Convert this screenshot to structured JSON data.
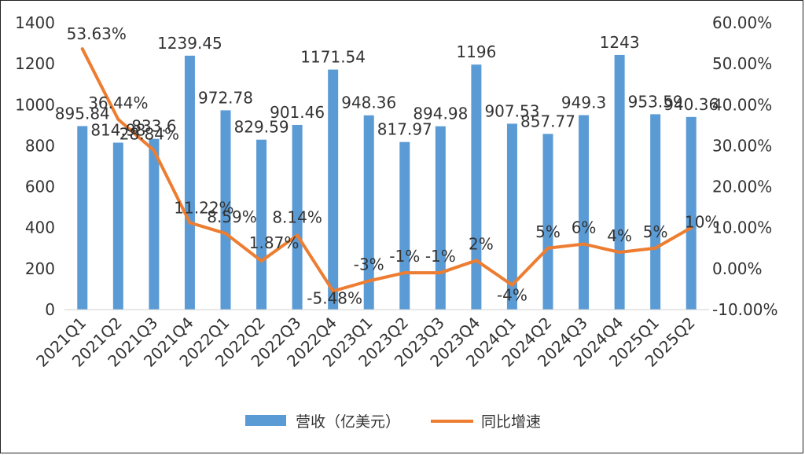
{
  "chart_data": {
    "type": "bar",
    "categories": [
      "2021Q1",
      "2021Q2",
      "2021Q3",
      "2021Q4",
      "2022Q1",
      "2022Q2",
      "2022Q3",
      "2022Q4",
      "2023Q1",
      "2023Q2",
      "2023Q3",
      "2023Q4",
      "2024Q1",
      "2024Q2",
      "2024Q3",
      "2024Q4",
      "2025Q1",
      "2025Q2"
    ],
    "series": [
      {
        "name": "营收（亿美元）",
        "type": "bar",
        "axis": "left",
        "color": "#5b9bd5",
        "values": [
          895.84,
          814.98,
          833.6,
          1239.45,
          972.78,
          829.59,
          901.46,
          1171.54,
          948.36,
          817.97,
          894.98,
          1196,
          907.53,
          857.77,
          949.3,
          1243,
          953.59,
          940.36
        ],
        "labels": [
          "895.84",
          "814.98",
          "833.6",
          "1239.45",
          "972.78",
          "829.59",
          "901.46",
          "1171.54",
          "948.36",
          "817.97",
          "894.98",
          "1196",
          "907.53",
          "857.77",
          "949.3",
          "1243",
          "953.59",
          "940.36"
        ]
      },
      {
        "name": "同比增速",
        "type": "line",
        "axis": "right",
        "color": "#ed7d31",
        "values": [
          53.63,
          36.44,
          28.84,
          11.22,
          8.59,
          1.87,
          8.14,
          -5.48,
          -3,
          -1,
          -1,
          2,
          -4,
          5,
          6,
          4,
          5,
          10
        ],
        "labels": [
          "53.63%",
          "36.44%",
          "28.84%",
          "11.22%",
          "8.59%",
          "1.87%",
          "8.14%",
          "-5.48%",
          "-3%",
          "-1%",
          "-1%",
          "2%",
          "-4%",
          "5%",
          "6%",
          "4%",
          "5%",
          "10%"
        ]
      }
    ],
    "y_left": {
      "min": 0,
      "max": 1400,
      "step": 200,
      "ticks": [
        "0",
        "200",
        "400",
        "600",
        "800",
        "1000",
        "1200",
        "1400"
      ]
    },
    "y_right": {
      "min": -10,
      "max": 60,
      "step": 10,
      "ticks": [
        "-10.00%",
        "0.00%",
        "10.00%",
        "20.00%",
        "30.00%",
        "40.00%",
        "50.00%",
        "60.00%"
      ]
    },
    "legend_position": "bottom",
    "grid": false
  }
}
